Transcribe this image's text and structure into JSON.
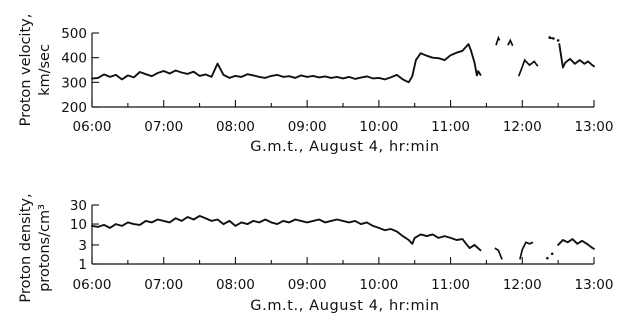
{
  "chart_data": [
    {
      "type": "line",
      "ylabel_lines": [
        "Proton velocity,",
        "km/sec"
      ],
      "xlabel": "G.m.t., August 4, hr:min",
      "x_ticks": [
        "06:00",
        "07:00",
        "08:00",
        "09:00",
        "10:00",
        "11:00",
        "12:00",
        "13:00"
      ],
      "y_ticks": [
        "200",
        "300",
        "400",
        "500"
      ],
      "xlim": [
        "06:00",
        "13:00"
      ],
      "ylim": [
        200,
        500
      ],
      "y_scale": "linear",
      "grid": false,
      "series": [
        {
          "segments": [
            [
              [
                "06:00",
                315
              ],
              [
                "06:05",
                318
              ],
              [
                "06:10",
                332
              ],
              [
                "06:15",
                322
              ],
              [
                "06:20",
                330
              ],
              [
                "06:25",
                312
              ],
              [
                "06:30",
                328
              ],
              [
                "06:35",
                320
              ],
              [
                "06:40",
                342
              ],
              [
                "06:45",
                333
              ],
              [
                "06:50",
                325
              ],
              [
                "06:55",
                338
              ],
              [
                "07:00",
                346
              ],
              [
                "07:05",
                336
              ],
              [
                "07:10",
                348
              ],
              [
                "07:15",
                340
              ],
              [
                "07:20",
                334
              ],
              [
                "07:25",
                343
              ],
              [
                "07:30",
                326
              ],
              [
                "07:35",
                332
              ],
              [
                "07:40",
                322
              ],
              [
                "07:45",
                376
              ],
              [
                "07:50",
                330
              ],
              [
                "07:55",
                318
              ],
              [
                "08:00",
                326
              ],
              [
                "08:05",
                322
              ],
              [
                "08:10",
                333
              ],
              [
                "08:15",
                328
              ],
              [
                "08:20",
                322
              ],
              [
                "08:25",
                318
              ],
              [
                "08:30",
                326
              ],
              [
                "08:35",
                330
              ],
              [
                "08:40",
                322
              ],
              [
                "08:45",
                325
              ],
              [
                "08:50",
                318
              ],
              [
                "08:55",
                328
              ],
              [
                "09:00",
                322
              ],
              [
                "09:05",
                326
              ],
              [
                "09:10",
                320
              ],
              [
                "09:15",
                324
              ],
              [
                "09:20",
                318
              ],
              [
                "09:25",
                322
              ],
              [
                "09:30",
                316
              ],
              [
                "09:35",
                322
              ],
              [
                "09:40",
                314
              ],
              [
                "09:45",
                319
              ],
              [
                "09:50",
                324
              ],
              [
                "09:55",
                316
              ],
              [
                "10:00",
                318
              ],
              [
                "10:05",
                312
              ],
              [
                "10:10",
                320
              ],
              [
                "10:15",
                330
              ],
              [
                "10:20",
                312
              ],
              [
                "10:25",
                300
              ],
              [
                "10:28",
                325
              ],
              [
                "10:31",
                390
              ],
              [
                "10:35",
                418
              ],
              [
                "10:40",
                408
              ],
              [
                "10:45",
                400
              ],
              [
                "10:50",
                398
              ],
              [
                "10:55",
                390
              ],
              [
                "11:00",
                410
              ],
              [
                "11:05",
                420
              ],
              [
                "11:10",
                428
              ],
              [
                "11:15",
                455
              ],
              [
                "11:17",
                430
              ],
              [
                "11:20",
                380
              ],
              [
                "11:22",
                328
              ],
              [
                "11:23",
                345
              ],
              [
                "11:25",
                330
              ]
            ],
            [
              [
                "11:38",
                450
              ],
              [
                "11:40",
                480
              ],
              [
                "11:41",
                470
              ]
            ],
            [
              [
                "11:48",
                450
              ],
              [
                "11:50",
                470
              ],
              [
                "11:52",
                448
              ]
            ],
            [
              [
                "11:57",
                325
              ],
              [
                "11:59",
                350
              ],
              [
                "12:02",
                390
              ],
              [
                "12:06",
                370
              ],
              [
                "12:10",
                385
              ],
              [
                "12:13",
                365
              ]
            ],
            [
              [
                "12:22",
                480
              ],
              [
                "12:26",
                478
              ]
            ],
            [
              [
                "12:31",
                455
              ],
              [
                "12:34",
                360
              ],
              [
                "12:36",
                380
              ],
              [
                "12:40",
                395
              ],
              [
                "12:44",
                375
              ],
              [
                "12:48",
                390
              ],
              [
                "12:52",
                375
              ],
              [
                "12:55",
                385
              ],
              [
                "12:58",
                372
              ],
              [
                "13:00",
                365
              ]
            ]
          ],
          "points": [
            [
              "12:23",
              482
            ],
            [
              "12:26",
              478
            ],
            [
              "12:30",
              470
            ]
          ]
        }
      ]
    },
    {
      "type": "line",
      "ylabel_lines": [
        "Proton density,",
        "protons/cm³"
      ],
      "xlabel": "G.m.t., August 4, hr:min",
      "x_ticks": [
        "06:00",
        "07:00",
        "08:00",
        "09:00",
        "10:00",
        "11:00",
        "12:00",
        "13:00"
      ],
      "y_ticks": [
        "1",
        "3",
        "10",
        "30"
      ],
      "xlim": [
        "06:00",
        "13:00"
      ],
      "ylim": [
        1,
        30
      ],
      "y_scale": "log",
      "grid": false,
      "series": [
        {
          "segments": [
            [
              [
                "06:00",
                9
              ],
              [
                "06:05",
                8.5
              ],
              [
                "06:10",
                9.5
              ],
              [
                "06:15",
                8
              ],
              [
                "06:20",
                10
              ],
              [
                "06:25",
                9
              ],
              [
                "06:30",
                11
              ],
              [
                "06:35",
                10
              ],
              [
                "06:40",
                9.5
              ],
              [
                "06:45",
                12
              ],
              [
                "06:50",
                11
              ],
              [
                "06:55",
                13
              ],
              [
                "07:00",
                12
              ],
              [
                "07:05",
                11
              ],
              [
                "07:10",
                14
              ],
              [
                "07:15",
                12
              ],
              [
                "07:20",
                15
              ],
              [
                "07:25",
                13
              ],
              [
                "07:30",
                16
              ],
              [
                "07:35",
                14
              ],
              [
                "07:40",
                12
              ],
              [
                "07:45",
                13
              ],
              [
                "07:50",
                10
              ],
              [
                "07:55",
                12
              ],
              [
                "08:00",
                9
              ],
              [
                "08:05",
                11
              ],
              [
                "08:10",
                10
              ],
              [
                "08:15",
                12
              ],
              [
                "08:20",
                11
              ],
              [
                "08:25",
                13
              ],
              [
                "08:30",
                11
              ],
              [
                "08:35",
                10
              ],
              [
                "08:40",
                12
              ],
              [
                "08:45",
                11
              ],
              [
                "08:50",
                13
              ],
              [
                "08:55",
                12
              ],
              [
                "09:00",
                11
              ],
              [
                "09:05",
                12
              ],
              [
                "09:10",
                13
              ],
              [
                "09:15",
                11
              ],
              [
                "09:20",
                12
              ],
              [
                "09:25",
                13
              ],
              [
                "09:30",
                12
              ],
              [
                "09:35",
                11
              ],
              [
                "09:40",
                12
              ],
              [
                "09:45",
                10
              ],
              [
                "09:50",
                11
              ],
              [
                "09:55",
                9
              ],
              [
                "10:00",
                8
              ],
              [
                "10:05",
                7
              ],
              [
                "10:10",
                7.5
              ],
              [
                "10:15",
                6.5
              ],
              [
                "10:20",
                5
              ],
              [
                "10:25",
                4
              ],
              [
                "10:28",
                3.2
              ],
              [
                "10:30",
                4.5
              ],
              [
                "10:35",
                5.5
              ],
              [
                "10:40",
                5
              ],
              [
                "10:45",
                5.5
              ],
              [
                "10:50",
                4.5
              ],
              [
                "10:55",
                5
              ],
              [
                "11:00",
                4.5
              ],
              [
                "11:05",
                4
              ],
              [
                "11:10",
                4.2
              ],
              [
                "11:13",
                3.2
              ],
              [
                "11:16",
                2.5
              ],
              [
                "11:20",
                3
              ],
              [
                "11:25",
                2.2
              ]
            ],
            [
              [
                "11:37",
                2.5
              ],
              [
                "11:40",
                2.2
              ],
              [
                "11:43",
                1.3
              ]
            ],
            [
              [
                "11:58",
                1.3
              ],
              [
                "12:00",
                2.3
              ],
              [
                "12:03",
                3.5
              ],
              [
                "12:06",
                3.2
              ],
              [
                "12:09",
                3.5
              ]
            ],
            [
              [
                "12:30",
                3
              ],
              [
                "12:34",
                4
              ],
              [
                "12:38",
                3.5
              ],
              [
                "12:42",
                4.2
              ],
              [
                "12:46",
                3.2
              ],
              [
                "12:50",
                3.8
              ],
              [
                "12:54",
                3.2
              ],
              [
                "12:58",
                2.6
              ],
              [
                "13:00",
                2.4
              ]
            ]
          ],
          "points": [
            [
              "12:21",
              1.4
            ],
            [
              "12:25",
              1.8
            ]
          ]
        }
      ]
    }
  ]
}
